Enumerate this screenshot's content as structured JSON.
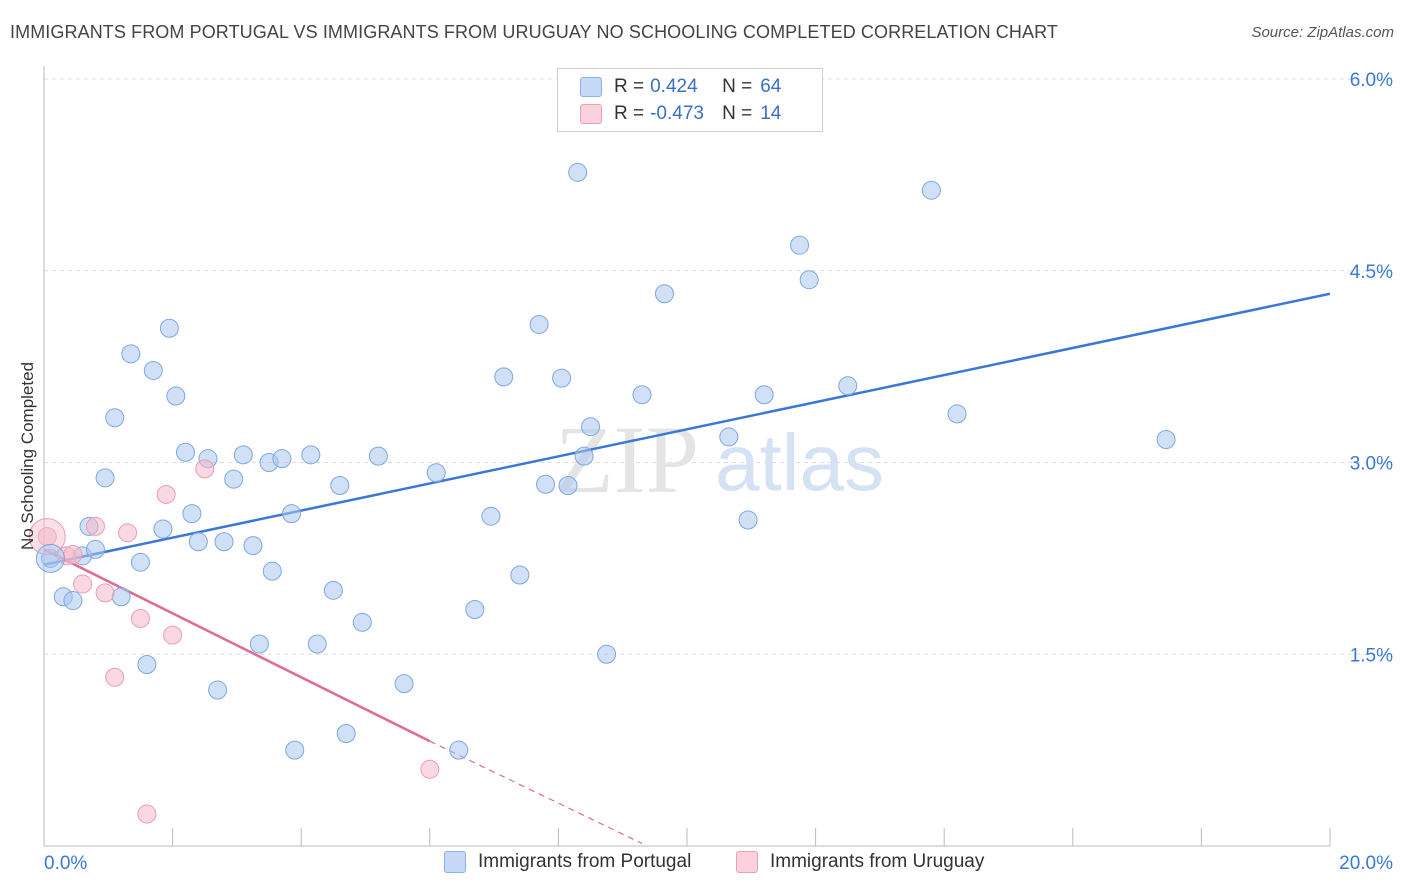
{
  "title": "IMMIGRANTS FROM PORTUGAL VS IMMIGRANTS FROM URUGUAY NO SCHOOLING COMPLETED CORRELATION CHART",
  "source": "Source: ZipAtlas.com",
  "watermark": {
    "zip": "ZIP",
    "atlas": "atlas"
  },
  "legend": {
    "r_label": "R =",
    "n_label": "N =",
    "rows": [
      {
        "r": "0.424",
        "n": "64",
        "color": "#a9c6ef"
      },
      {
        "r": "-0.473",
        "n": "14",
        "color": "#f5b8c9"
      }
    ]
  },
  "chart_data": {
    "type": "scatter",
    "title": "IMMIGRANTS FROM PORTUGAL VS IMMIGRANTS FROM URUGUAY NO SCHOOLING COMPLETED CORRELATION CHART",
    "xlabel": "",
    "ylabel": "No Schooling Completed",
    "xlim": [
      0,
      20
    ],
    "ylim": [
      0,
      6.25
    ],
    "x_tick_labels": [
      "0.0%",
      "20.0%"
    ],
    "y_ticks": [
      1.5,
      3.0,
      4.5,
      6.0
    ],
    "y_tick_labels": [
      "1.5%",
      "3.0%",
      "4.5%",
      "6.0%"
    ],
    "grid": true,
    "legend_position": "bottom",
    "series": [
      {
        "name": "Immigrants from Portugal",
        "color": "#a9c6ef",
        "line_color": "#3a78d6",
        "trend": {
          "x": [
            0,
            20
          ],
          "y": [
            2.2,
            4.32
          ]
        },
        "points": [
          [
            0.1,
            2.25
          ],
          [
            0.3,
            1.95
          ],
          [
            0.6,
            2.27
          ],
          [
            0.45,
            1.92
          ],
          [
            0.7,
            2.5
          ],
          [
            0.8,
            2.32
          ],
          [
            0.95,
            2.88
          ],
          [
            1.1,
            3.35
          ],
          [
            1.2,
            1.95
          ],
          [
            1.35,
            3.85
          ],
          [
            1.5,
            2.22
          ],
          [
            1.6,
            1.42
          ],
          [
            1.7,
            3.72
          ],
          [
            1.85,
            2.48
          ],
          [
            1.95,
            4.05
          ],
          [
            2.05,
            3.52
          ],
          [
            2.2,
            3.08
          ],
          [
            2.3,
            2.6
          ],
          [
            2.4,
            2.38
          ],
          [
            2.55,
            3.03
          ],
          [
            2.7,
            1.22
          ],
          [
            2.8,
            2.38
          ],
          [
            2.95,
            2.87
          ],
          [
            3.1,
            3.06
          ],
          [
            3.25,
            2.35
          ],
          [
            3.35,
            1.58
          ],
          [
            3.5,
            3.0
          ],
          [
            3.55,
            2.15
          ],
          [
            3.7,
            3.03
          ],
          [
            3.85,
            2.6
          ],
          [
            3.9,
            0.75
          ],
          [
            4.15,
            3.06
          ],
          [
            4.25,
            1.58
          ],
          [
            4.5,
            2.0
          ],
          [
            4.6,
            2.82
          ],
          [
            4.7,
            0.88
          ],
          [
            4.95,
            1.75
          ],
          [
            5.2,
            3.05
          ],
          [
            5.6,
            1.27
          ],
          [
            6.1,
            2.92
          ],
          [
            6.45,
            0.75
          ],
          [
            6.7,
            1.85
          ],
          [
            6.95,
            2.58
          ],
          [
            7.15,
            3.67
          ],
          [
            7.4,
            2.12
          ],
          [
            7.7,
            4.08
          ],
          [
            7.8,
            2.83
          ],
          [
            8.05,
            3.66
          ],
          [
            8.3,
            5.27
          ],
          [
            8.15,
            2.82
          ],
          [
            8.4,
            3.05
          ],
          [
            8.5,
            3.28
          ],
          [
            8.75,
            1.5
          ],
          [
            9.3,
            3.53
          ],
          [
            9.65,
            4.32
          ],
          [
            10.65,
            3.2
          ],
          [
            10.95,
            2.55
          ],
          [
            11.2,
            3.53
          ],
          [
            11.75,
            4.7
          ],
          [
            11.9,
            4.43
          ],
          [
            12.5,
            3.6
          ],
          [
            13.8,
            5.13
          ],
          [
            14.2,
            3.38
          ],
          [
            17.45,
            3.18
          ]
        ]
      },
      {
        "name": "Immigrants from Uruguay",
        "color": "#f5b8c9",
        "line_color": "#e06b93",
        "trend": {
          "x": [
            0,
            6.0
          ],
          "y": [
            2.32,
            0.82
          ]
        },
        "trend_extended": {
          "x": [
            6.0,
            9.3
          ],
          "y": [
            0.82,
            0.02
          ]
        },
        "points": [
          [
            0.05,
            2.42
          ],
          [
            0.35,
            2.27
          ],
          [
            0.45,
            2.28
          ],
          [
            0.6,
            2.05
          ],
          [
            0.8,
            2.5
          ],
          [
            0.95,
            1.98
          ],
          [
            1.1,
            1.32
          ],
          [
            1.3,
            2.45
          ],
          [
            1.5,
            1.78
          ],
          [
            1.6,
            0.25
          ],
          [
            1.9,
            2.75
          ],
          [
            2.0,
            1.65
          ],
          [
            2.5,
            2.95
          ],
          [
            6.0,
            0.6
          ]
        ]
      }
    ]
  }
}
